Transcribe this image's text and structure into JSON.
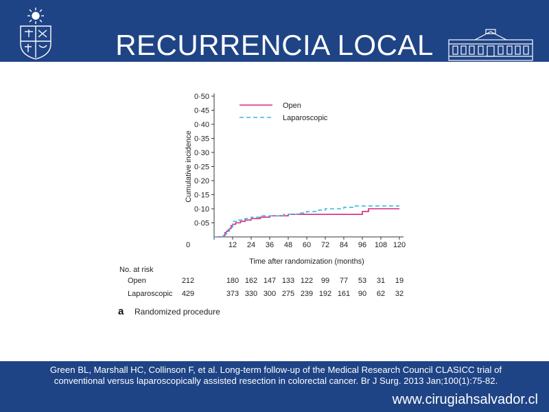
{
  "slide": {
    "title": "RECURRENCIA LOCAL",
    "citation": "Green BL, Marshall HC, Collinson F, et al. Long-term follow-up of the Medical Research Council CLASICC trial of conventional versus laparoscopically assisted resection in colorectal cancer. Br J Surg. 2013 Jan;100(1):75-82.",
    "website": "www.cirugiahsalvador.cl",
    "colors": {
      "band": "#1f4486",
      "open": "#d6267f",
      "laparoscopic": "#35b9dd"
    },
    "icons": {
      "left": "university-crest-icon",
      "right": "building-facade-icon"
    }
  },
  "chart_data": {
    "type": "line",
    "title": "",
    "xlabel": "Time after randomization (months)",
    "ylabel": "Cumulative incidence",
    "xlim": [
      0,
      120
    ],
    "ylim": [
      0,
      0.5
    ],
    "xticks": [
      0,
      12,
      24,
      36,
      48,
      60,
      72,
      84,
      96,
      108,
      120
    ],
    "xtick_labels": [
      "0",
      "12",
      "24",
      "36",
      "48",
      "60",
      "72",
      "84",
      "96",
      "108",
      "120"
    ],
    "yticks": [
      0.05,
      0.1,
      0.15,
      0.2,
      0.25,
      0.3,
      0.35,
      0.4,
      0.45,
      0.5
    ],
    "ytick_labels": [
      "0·05",
      "0·10",
      "0·15",
      "0·20",
      "0·25",
      "0·30",
      "0·35",
      "0·40",
      "0·45",
      "0·50"
    ],
    "legend_position": "top-left",
    "series": [
      {
        "name": "Open",
        "style": "solid",
        "color": "#d6267f",
        "x": [
          0,
          5,
          6,
          7,
          8,
          9,
          10,
          11,
          12,
          14,
          17,
          20,
          24,
          30,
          36,
          40,
          48,
          60,
          72,
          84,
          90,
          95,
          96,
          100,
          120
        ],
        "y": [
          0,
          0,
          0.005,
          0.015,
          0.02,
          0.025,
          0.03,
          0.04,
          0.045,
          0.05,
          0.055,
          0.06,
          0.065,
          0.07,
          0.075,
          0.075,
          0.08,
          0.08,
          0.08,
          0.08,
          0.08,
          0.08,
          0.09,
          0.1,
          0.1
        ]
      },
      {
        "name": "Laparoscopic",
        "style": "dashed",
        "color": "#35b9dd",
        "x": [
          0,
          4,
          6,
          8,
          10,
          12,
          16,
          20,
          24,
          30,
          36,
          45,
          48,
          54,
          60,
          66,
          72,
          78,
          84,
          90,
          96,
          108,
          120
        ],
        "y": [
          0,
          0,
          0.01,
          0.02,
          0.035,
          0.055,
          0.06,
          0.065,
          0.07,
          0.075,
          0.075,
          0.08,
          0.08,
          0.085,
          0.09,
          0.095,
          0.1,
          0.1,
          0.105,
          0.11,
          0.11,
          0.11,
          0.11
        ]
      }
    ],
    "risk_table": {
      "header": "No. at risk",
      "rows": [
        {
          "label": "Open",
          "values": [
            "212",
            "180",
            "162",
            "147",
            "133",
            "122",
            "99",
            "77",
            "53",
            "31",
            "19"
          ]
        },
        {
          "label": "Laparoscopic",
          "values": [
            "429",
            "373",
            "330",
            "300",
            "275",
            "239",
            "192",
            "161",
            "90",
            "62",
            "32"
          ]
        }
      ]
    },
    "panel_label": "a",
    "panel_caption": "Randomized procedure"
  }
}
